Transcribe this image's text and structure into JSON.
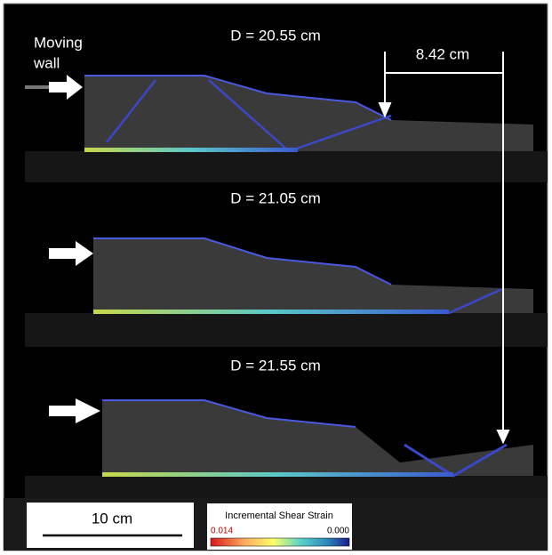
{
  "labels": {
    "moving_wall": [
      "Moving",
      "wall"
    ],
    "displacement": "8.42 cm"
  },
  "panels": [
    {
      "label": "D = 20.55 cm"
    },
    {
      "label": "D = 21.05 cm"
    },
    {
      "label": "D = 21.55 cm"
    }
  ],
  "scale_bar": {
    "label": "10 cm"
  },
  "colorbar": {
    "title": "Incremental Shear Strain",
    "min_label": "0.014",
    "max_label": "0.000"
  }
}
